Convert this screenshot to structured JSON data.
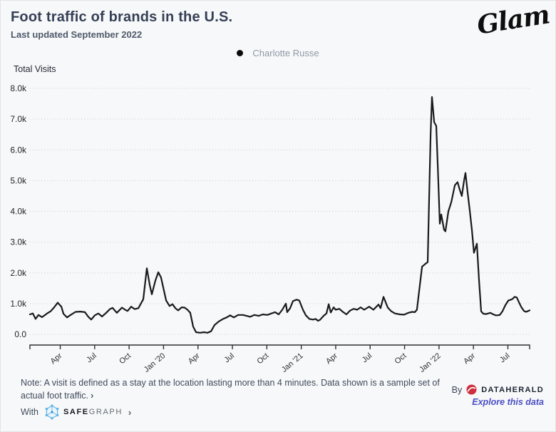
{
  "header": {
    "title": "Foot traffic of brands in the U.S.",
    "subtitle": "Last updated September 2022",
    "brand_logo": "Glam"
  },
  "legend": {
    "series_label": "Charlotte Russe",
    "dot_color": "#0b0b0b"
  },
  "chart_data": {
    "type": "line",
    "title": "Foot traffic of brands in the U.S.",
    "series_name": "Charlotte Russe",
    "ylabel": "Total Visits",
    "ylim": [
      0,
      8000
    ],
    "grid": "horizontal-dotted",
    "legend_position": "top-center",
    "line_color": "#1a1a1a",
    "x_range": [
      2019.03,
      2022.658
    ],
    "y_ticks": [
      {
        "v": 8000,
        "label": "8.0k"
      },
      {
        "v": 7000,
        "label": "7.0k"
      },
      {
        "v": 6000,
        "label": "6.0k"
      },
      {
        "v": 5000,
        "label": "5.0k"
      },
      {
        "v": 4000,
        "label": "4.0k"
      },
      {
        "v": 3000,
        "label": "3.0k"
      },
      {
        "v": 2000,
        "label": "2.0k"
      },
      {
        "v": 1000,
        "label": "1.0k"
      },
      {
        "v": 0,
        "label": "0.0"
      }
    ],
    "x_ticks": [
      {
        "pos": 2019.25,
        "label": "Apr"
      },
      {
        "pos": 2019.5,
        "label": "Jul"
      },
      {
        "pos": 2019.75,
        "label": "Oct"
      },
      {
        "pos": 2020.0,
        "label": "Jan '20"
      },
      {
        "pos": 2020.25,
        "label": "Apr"
      },
      {
        "pos": 2020.5,
        "label": "Jul"
      },
      {
        "pos": 2020.75,
        "label": "Oct"
      },
      {
        "pos": 2021.0,
        "label": "Jan '21"
      },
      {
        "pos": 2021.25,
        "label": "Apr"
      },
      {
        "pos": 2021.5,
        "label": "Jul"
      },
      {
        "pos": 2021.75,
        "label": "Oct"
      },
      {
        "pos": 2022.0,
        "label": "Jan '22"
      },
      {
        "pos": 2022.25,
        "label": "Apr"
      },
      {
        "pos": 2022.5,
        "label": "Jul"
      }
    ],
    "points": [
      [
        2019.03,
        650
      ],
      [
        2019.051,
        680
      ],
      [
        2019.071,
        500
      ],
      [
        2019.092,
        630
      ],
      [
        2019.118,
        560
      ],
      [
        2019.154,
        680
      ],
      [
        2019.18,
        750
      ],
      [
        2019.206,
        880
      ],
      [
        2019.232,
        1030
      ],
      [
        2019.258,
        900
      ],
      [
        2019.273,
        670
      ],
      [
        2019.299,
        550
      ],
      [
        2019.325,
        630
      ],
      [
        2019.361,
        730
      ],
      [
        2019.397,
        740
      ],
      [
        2019.429,
        720
      ],
      [
        2019.454,
        570
      ],
      [
        2019.475,
        480
      ],
      [
        2019.501,
        620
      ],
      [
        2019.527,
        680
      ],
      [
        2019.553,
        580
      ],
      [
        2019.584,
        700
      ],
      [
        2019.61,
        820
      ],
      [
        2019.63,
        860
      ],
      [
        2019.661,
        700
      ],
      [
        2019.698,
        870
      ],
      [
        2019.724,
        790
      ],
      [
        2019.739,
        760
      ],
      [
        2019.765,
        900
      ],
      [
        2019.791,
        820
      ],
      [
        2019.817,
        850
      ],
      [
        2019.853,
        1140
      ],
      [
        2019.879,
        2150
      ],
      [
        2019.9,
        1600
      ],
      [
        2019.915,
        1300
      ],
      [
        2019.941,
        1750
      ],
      [
        2019.962,
        2020
      ],
      [
        2019.982,
        1850
      ],
      [
        2020.019,
        1100
      ],
      [
        2020.044,
        920
      ],
      [
        2020.065,
        980
      ],
      [
        2020.086,
        850
      ],
      [
        2020.106,
        780
      ],
      [
        2020.132,
        880
      ],
      [
        2020.153,
        870
      ],
      [
        2020.174,
        800
      ],
      [
        2020.194,
        700
      ],
      [
        2020.215,
        250
      ],
      [
        2020.236,
        70
      ],
      [
        2020.267,
        50
      ],
      [
        2020.293,
        70
      ],
      [
        2020.319,
        50
      ],
      [
        2020.345,
        100
      ],
      [
        2020.37,
        300
      ],
      [
        2020.401,
        420
      ],
      [
        2020.432,
        500
      ],
      [
        2020.458,
        550
      ],
      [
        2020.484,
        620
      ],
      [
        2020.51,
        550
      ],
      [
        2020.541,
        630
      ],
      [
        2020.577,
        630
      ],
      [
        2020.603,
        600
      ],
      [
        2020.629,
        570
      ],
      [
        2020.66,
        630
      ],
      [
        2020.691,
        600
      ],
      [
        2020.722,
        650
      ],
      [
        2020.753,
        630
      ],
      [
        2020.784,
        680
      ],
      [
        2020.81,
        720
      ],
      [
        2020.836,
        650
      ],
      [
        2020.862,
        800
      ],
      [
        2020.888,
        1000
      ],
      [
        2020.898,
        720
      ],
      [
        2020.919,
        850
      ],
      [
        2020.94,
        1080
      ],
      [
        2020.966,
        1130
      ],
      [
        2020.986,
        1100
      ],
      [
        2021.012,
        800
      ],
      [
        2021.033,
        620
      ],
      [
        2021.059,
        500
      ],
      [
        2021.085,
        480
      ],
      [
        2021.105,
        500
      ],
      [
        2021.121,
        440
      ],
      [
        2021.136,
        470
      ],
      [
        2021.162,
        600
      ],
      [
        2021.183,
        680
      ],
      [
        2021.199,
        980
      ],
      [
        2021.214,
        710
      ],
      [
        2021.235,
        880
      ],
      [
        2021.25,
        800
      ],
      [
        2021.276,
        830
      ],
      [
        2021.302,
        730
      ],
      [
        2021.328,
        650
      ],
      [
        2021.354,
        770
      ],
      [
        2021.38,
        830
      ],
      [
        2021.406,
        800
      ],
      [
        2021.431,
        880
      ],
      [
        2021.457,
        800
      ],
      [
        2021.493,
        900
      ],
      [
        2021.524,
        800
      ],
      [
        2021.561,
        970
      ],
      [
        2021.576,
        850
      ],
      [
        2021.597,
        1220
      ],
      [
        2021.628,
        870
      ],
      [
        2021.654,
        750
      ],
      [
        2021.68,
        680
      ],
      [
        2021.716,
        650
      ],
      [
        2021.747,
        640
      ],
      [
        2021.778,
        700
      ],
      [
        2021.804,
        730
      ],
      [
        2021.825,
        720
      ],
      [
        2021.84,
        800
      ],
      [
        2021.861,
        1600
      ],
      [
        2021.877,
        2200
      ],
      [
        2021.903,
        2300
      ],
      [
        2021.918,
        2350
      ],
      [
        2021.929,
        4500
      ],
      [
        2021.939,
        6500
      ],
      [
        2021.949,
        7720
      ],
      [
        2021.965,
        6900
      ],
      [
        2021.98,
        6780
      ],
      [
        2021.991,
        5500
      ],
      [
        2022.006,
        3600
      ],
      [
        2022.016,
        3900
      ],
      [
        2022.037,
        3400
      ],
      [
        2022.047,
        3350
      ],
      [
        2022.068,
        4000
      ],
      [
        2022.089,
        4300
      ],
      [
        2022.115,
        4850
      ],
      [
        2022.135,
        4950
      ],
      [
        2022.151,
        4700
      ],
      [
        2022.166,
        4500
      ],
      [
        2022.182,
        5000
      ],
      [
        2022.192,
        5250
      ],
      [
        2022.208,
        4600
      ],
      [
        2022.223,
        4050
      ],
      [
        2022.239,
        3400
      ],
      [
        2022.254,
        2650
      ],
      [
        2022.275,
        2950
      ],
      [
        2022.29,
        1800
      ],
      [
        2022.306,
        750
      ],
      [
        2022.322,
        670
      ],
      [
        2022.342,
        660
      ],
      [
        2022.358,
        680
      ],
      [
        2022.373,
        700
      ],
      [
        2022.389,
        660
      ],
      [
        2022.41,
        620
      ],
      [
        2022.425,
        620
      ],
      [
        2022.441,
        630
      ],
      [
        2022.461,
        750
      ],
      [
        2022.482,
        950
      ],
      [
        2022.503,
        1100
      ],
      [
        2022.518,
        1120
      ],
      [
        2022.534,
        1150
      ],
      [
        2022.549,
        1220
      ],
      [
        2022.565,
        1200
      ],
      [
        2022.58,
        1050
      ],
      [
        2022.596,
        900
      ],
      [
        2022.617,
        760
      ],
      [
        2022.632,
        730
      ],
      [
        2022.648,
        760
      ],
      [
        2022.658,
        780
      ]
    ]
  },
  "footer": {
    "note_line1": "Note: A visit is defined as a stay at the location lasting more than 4 minutes. Data shown is a sample set of",
    "note_line2": "actual foot traffic.",
    "note_chevron": "›",
    "with_label": "With",
    "safegraph_bold": "SAFE",
    "safegraph_light": "GRAPH",
    "safegraph_chevron": "›",
    "by_label": "By",
    "dataherald_label": "DATAHERALD",
    "explore_link": "Explore this data",
    "accent_red": "#cf2e3c",
    "accent_purple": "#4a4fc4",
    "safegraph_blue": "#62b5e5"
  }
}
